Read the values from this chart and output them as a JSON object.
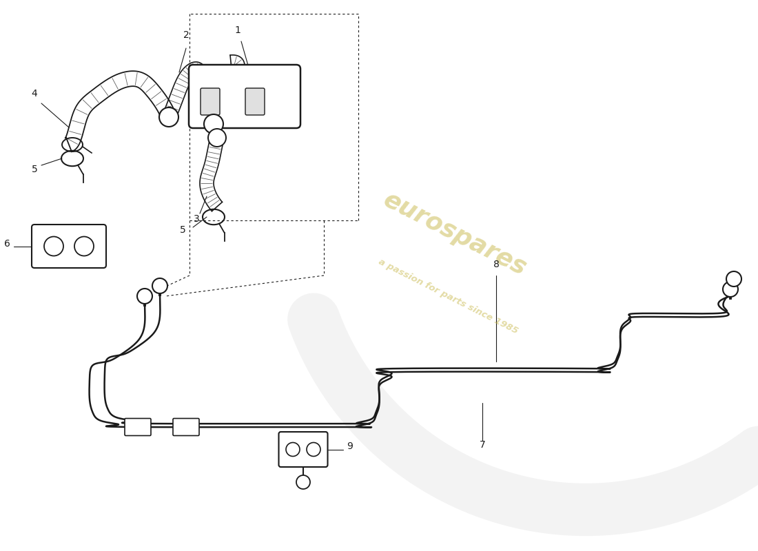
{
  "background_color": "#ffffff",
  "line_color": "#1a1a1a",
  "watermark_color1": "#c8b84a",
  "watermark_color2": "#c8b84a",
  "watermark_text1": "eurospares",
  "watermark_text2": "a passion for parts since 1985",
  "figsize": [
    11.0,
    8.0
  ],
  "dpi": 100,
  "xlim": [
    0,
    110
  ],
  "ylim": [
    0,
    80
  ]
}
